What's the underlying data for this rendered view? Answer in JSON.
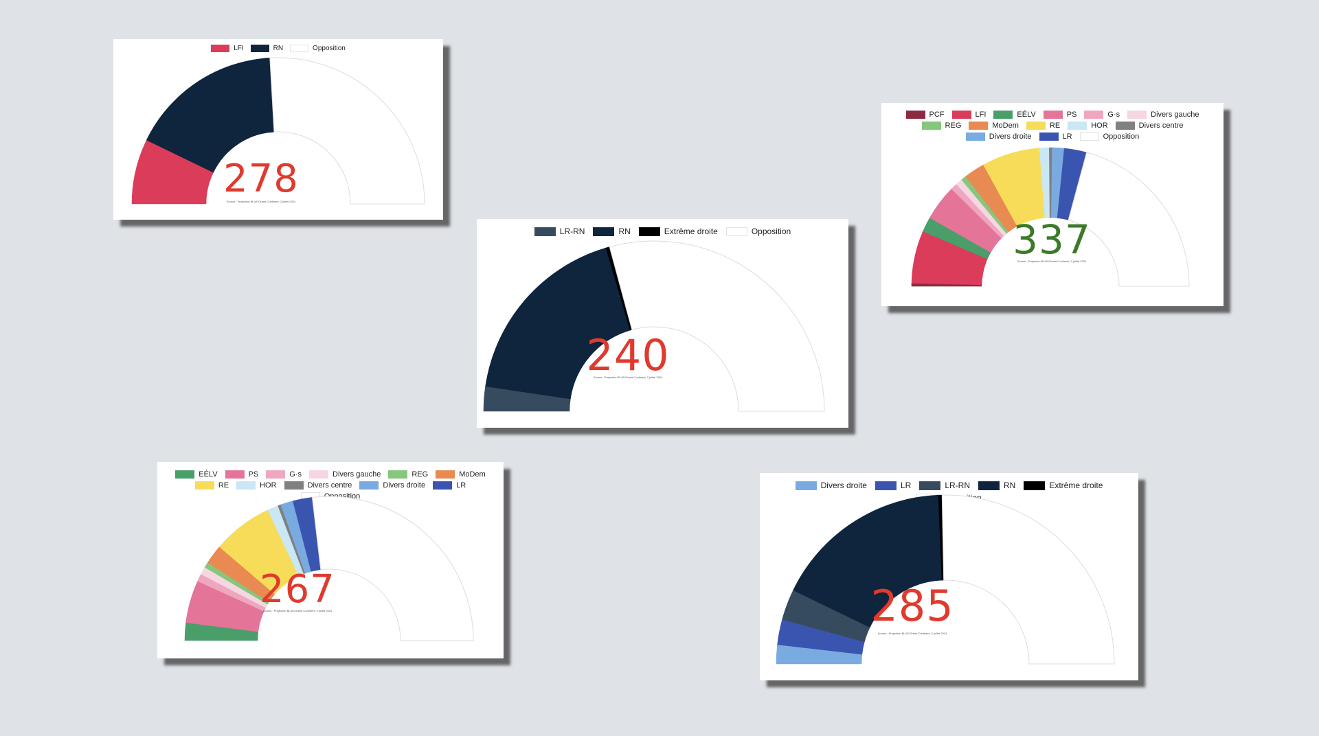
{
  "colors": {
    "background": "#dfe3e7",
    "total_red": "#e03a2f",
    "total_green": "#3a7a28",
    "arc_outline": "#dcdcdc"
  },
  "chart_data": [
    {
      "type": "semicircle",
      "total": "278",
      "total_color": "#e03a2f",
      "source": "Source : Projection BLUE/Grand Continent, 2 juillet 2024",
      "legend": [
        {
          "name": "LFI",
          "color": "#db3c5a"
        },
        {
          "name": "RN",
          "color": "#0f243d"
        },
        {
          "name": "Opposition",
          "color": "#ffffff"
        }
      ],
      "segments": [
        {
          "name": "LFI",
          "value": 83,
          "color": "#db3c5a"
        },
        {
          "name": "RN",
          "value": 195,
          "color": "#0f243d"
        },
        {
          "name": "Opposition",
          "value": 299,
          "color": "#ffffff"
        }
      ]
    },
    {
      "type": "semicircle",
      "total": "240",
      "total_color": "#e03a2f",
      "source": "Source : Projection BLUE/Grand Continent, 2 juillet 2024",
      "legend": [
        {
          "name": "LR-RN",
          "color": "#374b5e"
        },
        {
          "name": "RN",
          "color": "#0f243d"
        },
        {
          "name": "Extrême droite",
          "color": "#000000"
        },
        {
          "name": "Opposition",
          "color": "#ffffff"
        }
      ],
      "segments": [
        {
          "name": "LR-RN",
          "value": 27,
          "color": "#374b5e"
        },
        {
          "name": "RN",
          "value": 209,
          "color": "#0f243d"
        },
        {
          "name": "Extrême droite",
          "value": 4,
          "color": "#000000"
        },
        {
          "name": "Opposition",
          "value": 337,
          "color": "#ffffff"
        }
      ]
    },
    {
      "type": "semicircle",
      "total": "337",
      "total_color": "#3a7a28",
      "source": "Source : Projection BLUE/Grand Continent, 2 juillet 2024",
      "legend": [
        {
          "name": "PCF",
          "color": "#8c2a42"
        },
        {
          "name": "LFI",
          "color": "#db3c5a"
        },
        {
          "name": "EÉLV",
          "color": "#4a9e6a"
        },
        {
          "name": "PS",
          "color": "#e57499"
        },
        {
          "name": "G·s",
          "color": "#eea7bf"
        },
        {
          "name": "Divers gauche",
          "color": "#f6d6e1"
        },
        {
          "name": "REG",
          "color": "#86c67d"
        },
        {
          "name": "MoDem",
          "color": "#e98a53"
        },
        {
          "name": "RE",
          "color": "#f7dc5a"
        },
        {
          "name": "HOR",
          "color": "#c9e7f4"
        },
        {
          "name": "Divers centre",
          "color": "#808080"
        },
        {
          "name": "Divers droite",
          "color": "#7aabe0"
        },
        {
          "name": "LR",
          "color": "#3a55b0"
        },
        {
          "name": "Opposition",
          "color": "#ffffff"
        }
      ],
      "segments": [
        {
          "name": "PCF",
          "value": 4,
          "color": "#8c2a42"
        },
        {
          "name": "LFI",
          "value": 71,
          "color": "#db3c5a"
        },
        {
          "name": "EÉLV",
          "value": 20,
          "color": "#4a9e6a"
        },
        {
          "name": "PS",
          "value": 48,
          "color": "#e57499"
        },
        {
          "name": "G·s",
          "value": 9,
          "color": "#eea7bf"
        },
        {
          "name": "Divers gauche",
          "value": 9,
          "color": "#f6d6e1"
        },
        {
          "name": "REG",
          "value": 7,
          "color": "#86c67d"
        },
        {
          "name": "MoDem",
          "value": 28,
          "color": "#e98a53"
        },
        {
          "name": "RE",
          "value": 78,
          "color": "#f7dc5a"
        },
        {
          "name": "HOR",
          "value": 13,
          "color": "#c9e7f4"
        },
        {
          "name": "Divers centre",
          "value": 4,
          "color": "#808080"
        },
        {
          "name": "Divers droite",
          "value": 16,
          "color": "#7aabe0"
        },
        {
          "name": "LR",
          "value": 30,
          "color": "#3a55b0"
        },
        {
          "name": "Opposition",
          "value": 240,
          "color": "#ffffff"
        }
      ]
    },
    {
      "type": "semicircle",
      "total": "267",
      "total_color": "#e03a2f",
      "source": "Source : Projection BLUE/Grand Continent, 2 juillet 2024",
      "legend": [
        {
          "name": "EÉLV",
          "color": "#4a9e6a"
        },
        {
          "name": "PS",
          "color": "#e57499"
        },
        {
          "name": "G·s",
          "color": "#eea7bf"
        },
        {
          "name": "Divers gauche",
          "color": "#f6d6e1"
        },
        {
          "name": "REG",
          "color": "#86c67d"
        },
        {
          "name": "MoDem",
          "color": "#e98a53"
        },
        {
          "name": "RE",
          "color": "#f7dc5a"
        },
        {
          "name": "HOR",
          "color": "#c9e7f4"
        },
        {
          "name": "Divers centre",
          "color": "#808080"
        },
        {
          "name": "Divers droite",
          "color": "#7aabe0"
        },
        {
          "name": "LR",
          "color": "#3a55b0"
        },
        {
          "name": "Opposition",
          "color": "#ffffff"
        }
      ],
      "segments": [
        {
          "name": "EÉLV",
          "value": 23,
          "color": "#4a9e6a"
        },
        {
          "name": "PS",
          "value": 55,
          "color": "#e57499"
        },
        {
          "name": "G·s",
          "value": 10,
          "color": "#eea7bf"
        },
        {
          "name": "Divers gauche",
          "value": 10,
          "color": "#f6d6e1"
        },
        {
          "name": "REG",
          "value": 7,
          "color": "#86c67d"
        },
        {
          "name": "MoDem",
          "value": 25,
          "color": "#e98a53"
        },
        {
          "name": "RE",
          "value": 78,
          "color": "#f7dc5a"
        },
        {
          "name": "HOR",
          "value": 14,
          "color": "#c9e7f4"
        },
        {
          "name": "Divers centre",
          "value": 4,
          "color": "#808080"
        },
        {
          "name": "Divers droite",
          "value": 16,
          "color": "#7aabe0"
        },
        {
          "name": "LR",
          "value": 25,
          "color": "#3a55b0"
        },
        {
          "name": "Opposition",
          "value": 310,
          "color": "#ffffff"
        }
      ]
    },
    {
      "type": "semicircle",
      "total": "285",
      "total_color": "#e03a2f",
      "source": "Source : Projection BLUE/Grand Continent, 2 juillet 2024",
      "legend": [
        {
          "name": "Divers droite",
          "color": "#7aabe0"
        },
        {
          "name": "LR",
          "color": "#3a55b0"
        },
        {
          "name": "LR-RN",
          "color": "#374b5e"
        },
        {
          "name": "RN",
          "color": "#0f243d"
        },
        {
          "name": "Extrême droite",
          "color": "#000000"
        },
        {
          "name": "Opposition",
          "color": "#ffffff"
        }
      ],
      "segments": [
        {
          "name": "Divers droite",
          "value": 21,
          "color": "#7aabe0"
        },
        {
          "name": "LR",
          "value": 28,
          "color": "#3a55b0"
        },
        {
          "name": "LR-RN",
          "value": 34,
          "color": "#374b5e"
        },
        {
          "name": "RN",
          "value": 198,
          "color": "#0f243d"
        },
        {
          "name": "Extrême droite",
          "value": 4,
          "color": "#000000"
        },
        {
          "name": "Opposition",
          "value": 292,
          "color": "#ffffff"
        }
      ]
    }
  ]
}
